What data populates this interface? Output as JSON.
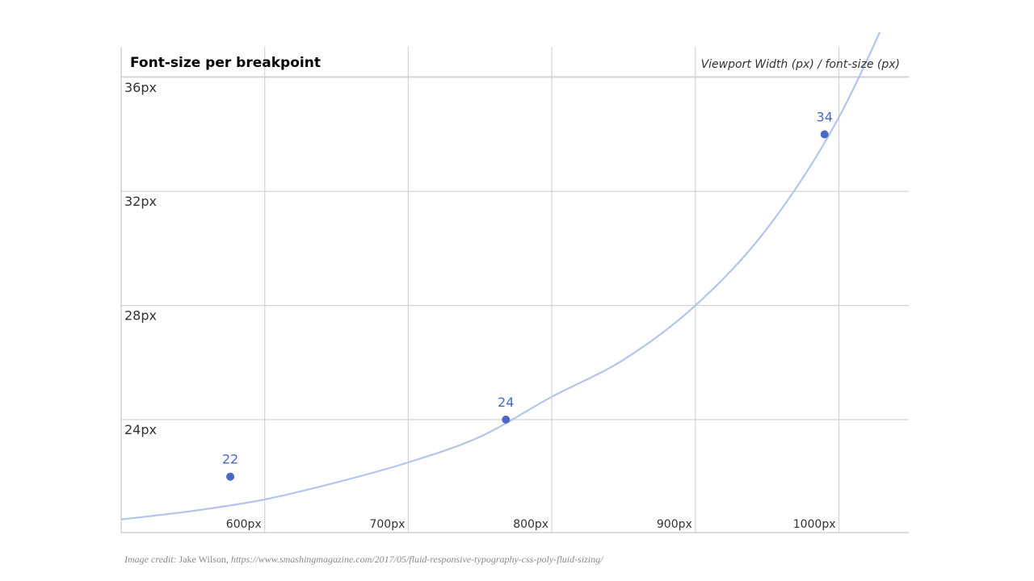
{
  "chart_data": {
    "type": "line",
    "title": "Font-size per breakpoint",
    "axis_caption": "Viewport Width (px) / font-size (px)",
    "xlabel": "",
    "ylabel": "",
    "xlim": [
      500,
      1050
    ],
    "ylim": [
      20.2,
      36.4
    ],
    "x_ticks": [
      {
        "value": 600,
        "label": "600px"
      },
      {
        "value": 700,
        "label": "700px"
      },
      {
        "value": 800,
        "label": "800px"
      },
      {
        "value": 900,
        "label": "900px"
      },
      {
        "value": 1000,
        "label": "1000px"
      }
    ],
    "y_ticks": [
      {
        "value": 24,
        "label": "24px"
      },
      {
        "value": 28,
        "label": "28px"
      },
      {
        "value": 32,
        "label": "32px"
      },
      {
        "value": 36,
        "label": "36px"
      }
    ],
    "series": [
      {
        "points": [
          {
            "x": 576,
            "y": 22,
            "label": "22"
          },
          {
            "x": 768,
            "y": 24,
            "label": "24"
          },
          {
            "x": 990,
            "y": 34,
            "label": "34"
          }
        ]
      }
    ],
    "curve": {
      "x": [
        500,
        550,
        600,
        650,
        700,
        750,
        800,
        850,
        900,
        950,
        1000,
        1050
      ],
      "y": [
        20.5,
        20.8,
        21.2,
        21.8,
        22.5,
        23.4,
        24.8,
        26.1,
        28.0,
        30.7,
        34.6,
        40.0
      ]
    },
    "grid": true,
    "legend": "none",
    "colors": {
      "curve": "#b4c4ec",
      "point": "#4a69c6",
      "label": "#4a69c6",
      "grid": "#d3d3d3"
    }
  },
  "credit": {
    "lead": "Image credit:",
    "author": "Jake Wilson,",
    "url": "https://www.smashingmagazine.com/2017/05/fluid-responsive-typography-css-poly-fluid-sizing/"
  }
}
